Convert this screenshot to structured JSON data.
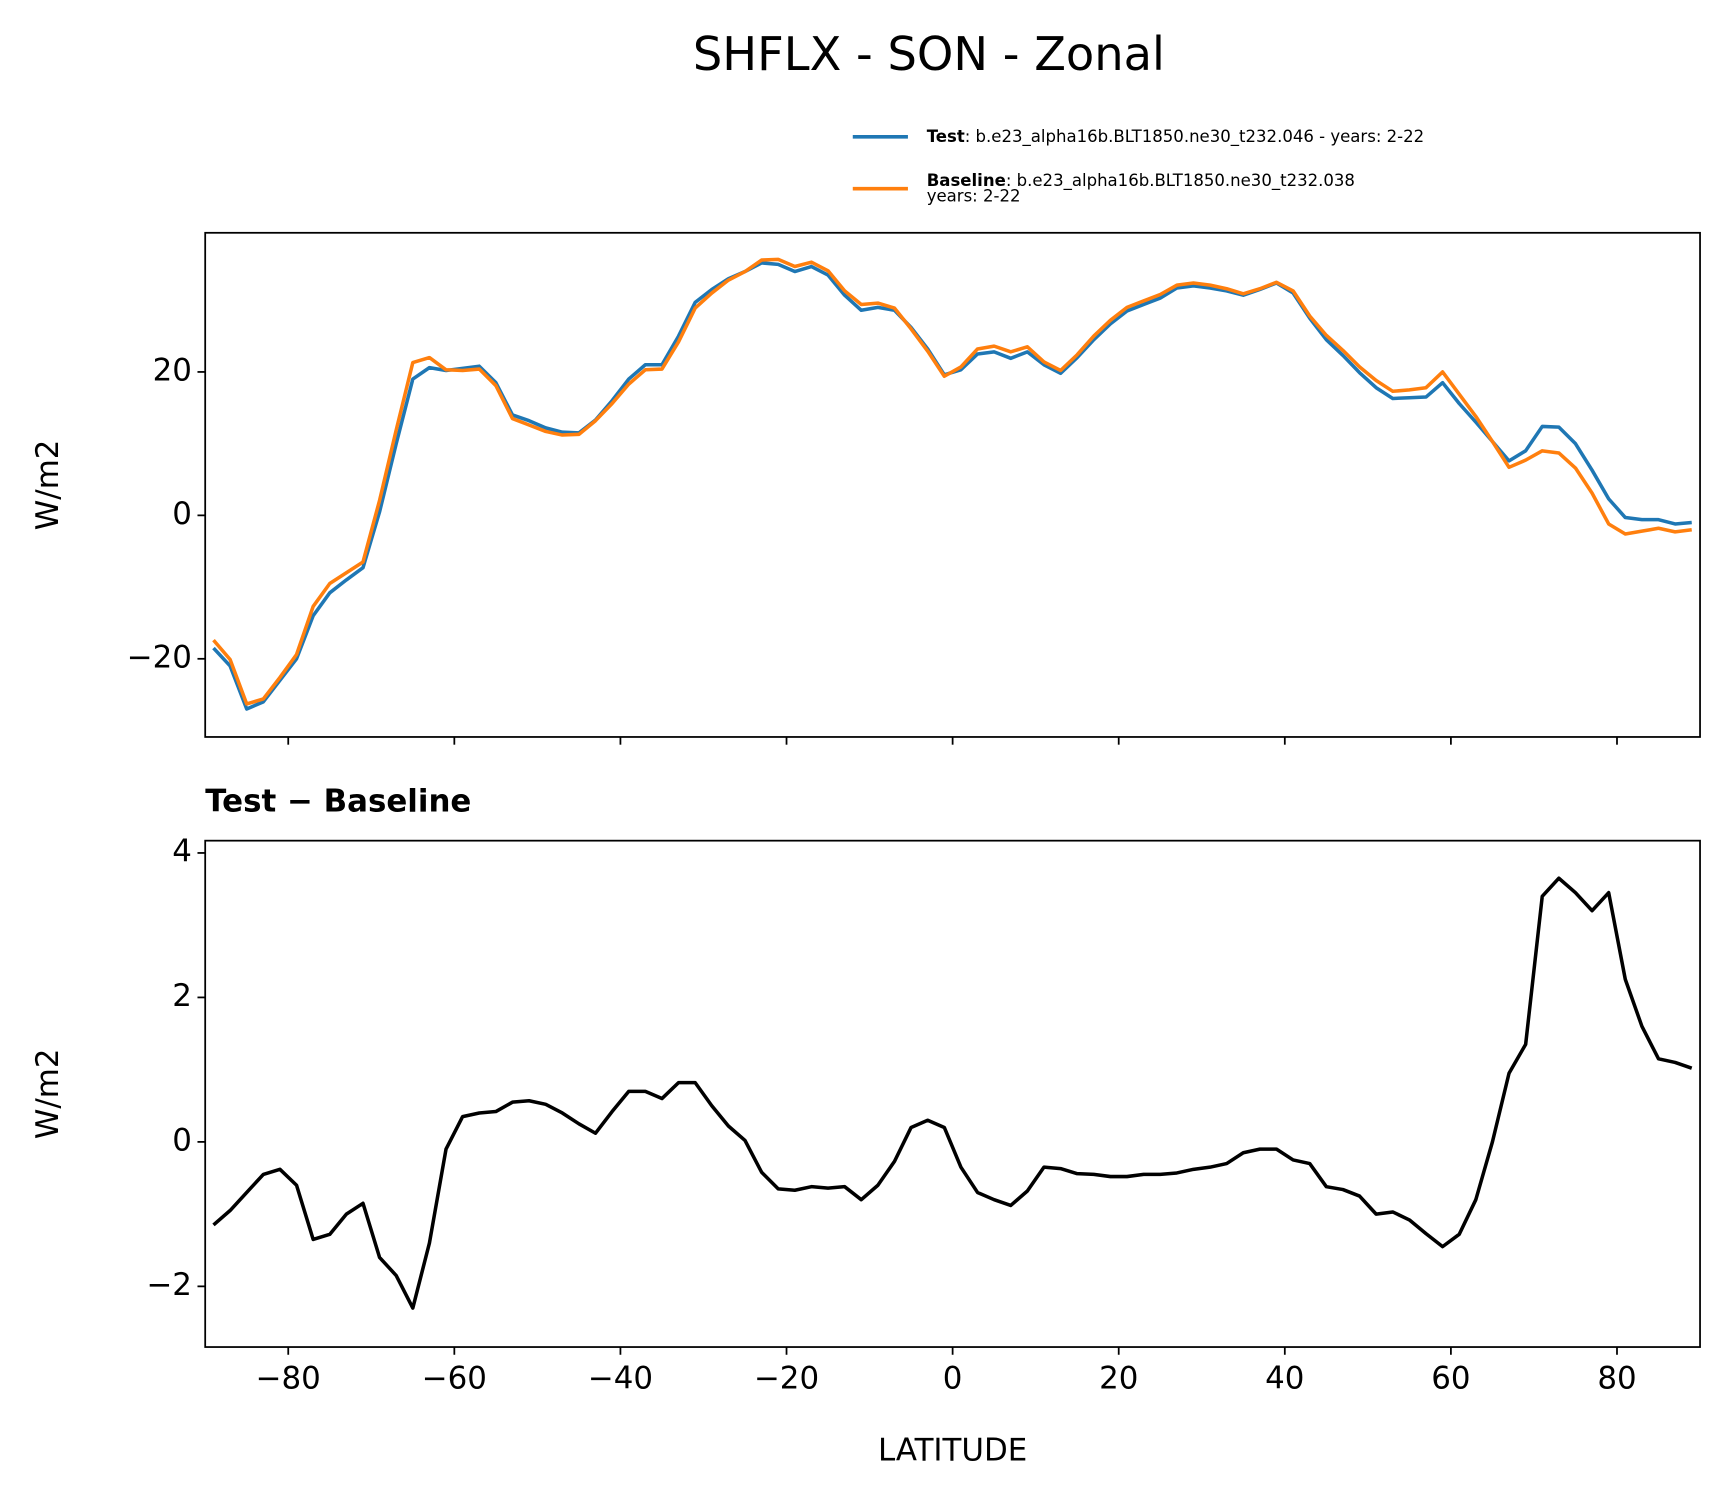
{
  "title": "SHFLX - SON - Zonal",
  "chart_data": [
    {
      "type": "line",
      "ylabel": "W/m2",
      "show_xtick_labels": false,
      "xlim": [
        -90,
        90
      ],
      "xticks": [
        {
          "value": -80,
          "label": "−80"
        },
        {
          "value": -60,
          "label": "−60"
        },
        {
          "value": -40,
          "label": "−40"
        },
        {
          "value": -20,
          "label": "−20"
        },
        0,
        20,
        40,
        60,
        80
      ],
      "ylim": [
        -30.9,
        39.4
      ],
      "yticks": [
        {
          "value": -20,
          "label": "−20"
        },
        0,
        20
      ],
      "x": [
        -89,
        -87,
        -85,
        -83,
        -81,
        -79,
        -77,
        -75,
        -73,
        -71,
        -69,
        -67,
        -65,
        -63,
        -61,
        -59,
        -57,
        -55,
        -53,
        -51,
        -49,
        -47,
        -45,
        -43,
        -41,
        -39,
        -37,
        -35,
        -33,
        -31,
        -29,
        -27,
        -25,
        -23,
        -21,
        -19,
        -17,
        -15,
        -13,
        -11,
        -9,
        -7,
        -5,
        -3,
        -1,
        1,
        3,
        5,
        7,
        9,
        11,
        13,
        15,
        17,
        19,
        21,
        23,
        25,
        27,
        29,
        31,
        33,
        35,
        37,
        39,
        41,
        43,
        45,
        47,
        49,
        51,
        53,
        55,
        57,
        59,
        61,
        63,
        65,
        67,
        69,
        71,
        73,
        75,
        77,
        79,
        81,
        83,
        85,
        87,
        89
      ],
      "series": [
        {
          "name": "Test",
          "description": [
            ": b.e23_alpha16b.BLT1850.ne30_t232.046 - years: 2-22"
          ],
          "color": "#1f77b4",
          "values": [
            -18.5,
            -21,
            -27,
            -26,
            -23,
            -20,
            -14,
            -10.8,
            -9,
            -7.3,
            0.5,
            10,
            19,
            20.6,
            20.2,
            20.5,
            20.8,
            18.5,
            14,
            13.2,
            12.2,
            11.6,
            11.5,
            13.3,
            16,
            19,
            21,
            21,
            25,
            29.7,
            31.5,
            33,
            34,
            35.2,
            35,
            34,
            34.7,
            33.5,
            30.7,
            28.6,
            29,
            28.6,
            26.2,
            23.2,
            19.6,
            20.3,
            22.5,
            22.8,
            21.9,
            22.8,
            21,
            19.8,
            22,
            24.5,
            26.7,
            28.5,
            29.4,
            30.3,
            31.7,
            32,
            31.7,
            31.3,
            30.7,
            31.5,
            32.4,
            31,
            27.5,
            24.5,
            22.3,
            19.9,
            17.8,
            16.3,
            16.4,
            16.5,
            18.5,
            15.6,
            13,
            10.3,
            7.6,
            9,
            12.4,
            12.3,
            10,
            6.3,
            2.3,
            -0.3,
            -0.6,
            -0.6,
            -1.2,
            -1
          ]
        },
        {
          "name": "Baseline",
          "description": [
            ": b.e23_alpha16b.BLT1850.ne30_t232.038",
            "years: 2-22"
          ],
          "color": "#ff7f0e",
          "values": [
            -17.4,
            -20.1,
            -26.3,
            -25.6,
            -22.6,
            -19.4,
            -12.7,
            -9.5,
            -8.0,
            -6.5,
            2.1,
            11.9,
            21.3,
            22.0,
            20.3,
            20.2,
            20.4,
            18.1,
            13.5,
            12.6,
            11.7,
            11.2,
            11.3,
            13.2,
            15.6,
            18.3,
            20.3,
            20.4,
            24.2,
            28.9,
            31.0,
            32.8,
            34.0,
            35.6,
            35.7,
            34.7,
            35.3,
            34.1,
            31.3,
            29.4,
            29.6,
            28.9,
            26.0,
            22.9,
            19.4,
            20.7,
            23.2,
            23.6,
            22.8,
            23.5,
            21.4,
            20.2,
            22.4,
            25.0,
            27.2,
            29.0,
            29.9,
            30.8,
            32.1,
            32.4,
            32.1,
            31.6,
            30.9,
            31.6,
            32.5,
            31.3,
            27.8,
            25.1,
            23.0,
            20.7,
            18.8,
            17.3,
            17.5,
            17.8,
            20.0,
            16.9,
            13.8,
            10.3,
            6.7,
            7.7,
            9.0,
            8.7,
            6.6,
            3.1,
            -1.2,
            -2.6,
            -2.2,
            -1.8,
            -2.3,
            -2.0
          ]
        }
      ]
    },
    {
      "type": "line",
      "title": "Test − Baseline",
      "xlabel": "LATITUDE",
      "ylabel": "W/m2",
      "show_xtick_labels": true,
      "xlim": [
        -90,
        90
      ],
      "xticks": [
        {
          "value": -80,
          "label": "−80"
        },
        {
          "value": -60,
          "label": "−60"
        },
        {
          "value": -40,
          "label": "−40"
        },
        {
          "value": -20,
          "label": "−20"
        },
        0,
        20,
        40,
        60,
        80
      ],
      "ylim": [
        -2.84,
        4.17
      ],
      "yticks": [
        {
          "value": -2,
          "label": "−2"
        },
        0,
        2,
        4
      ],
      "x": [
        -89,
        -87,
        -85,
        -83,
        -81,
        -79,
        -77,
        -75,
        -73,
        -71,
        -69,
        -67,
        -65,
        -63,
        -61,
        -59,
        -57,
        -55,
        -53,
        -51,
        -49,
        -47,
        -45,
        -43,
        -41,
        -39,
        -37,
        -35,
        -33,
        -31,
        -29,
        -27,
        -25,
        -23,
        -21,
        -19,
        -17,
        -15,
        -13,
        -11,
        -9,
        -7,
        -5,
        -3,
        -1,
        1,
        3,
        5,
        7,
        9,
        11,
        13,
        15,
        17,
        19,
        21,
        23,
        25,
        27,
        29,
        31,
        33,
        35,
        37,
        39,
        41,
        43,
        45,
        47,
        49,
        51,
        53,
        55,
        57,
        59,
        61,
        63,
        65,
        67,
        69,
        71,
        73,
        75,
        77,
        79,
        81,
        83,
        85,
        87,
        89
      ],
      "series": [
        {
          "color": "#000000",
          "values": [
            -1.15,
            -0.95,
            -0.7,
            -0.45,
            -0.38,
            -0.6,
            -1.35,
            -1.28,
            -1.0,
            -0.85,
            -1.6,
            -1.85,
            -2.3,
            -1.4,
            -0.1,
            0.35,
            0.4,
            0.42,
            0.55,
            0.57,
            0.52,
            0.4,
            0.25,
            0.12,
            0.42,
            0.7,
            0.7,
            0.6,
            0.82,
            0.82,
            0.5,
            0.22,
            0.02,
            -0.42,
            -0.65,
            -0.67,
            -0.62,
            -0.64,
            -0.62,
            -0.8,
            -0.6,
            -0.27,
            0.2,
            0.3,
            0.2,
            -0.35,
            -0.7,
            -0.8,
            -0.88,
            -0.68,
            -0.35,
            -0.37,
            -0.44,
            -0.45,
            -0.48,
            -0.48,
            -0.45,
            -0.45,
            -0.43,
            -0.38,
            -0.35,
            -0.3,
            -0.15,
            -0.1,
            -0.1,
            -0.25,
            -0.3,
            -0.62,
            -0.66,
            -0.75,
            -1.0,
            -0.97,
            -1.08,
            -1.27,
            -1.45,
            -1.28,
            -0.8,
            0.0,
            0.95,
            1.35,
            3.4,
            3.65,
            3.45,
            3.2,
            3.45,
            2.25,
            1.6,
            1.15,
            1.1,
            1.02
          ]
        }
      ]
    }
  ]
}
